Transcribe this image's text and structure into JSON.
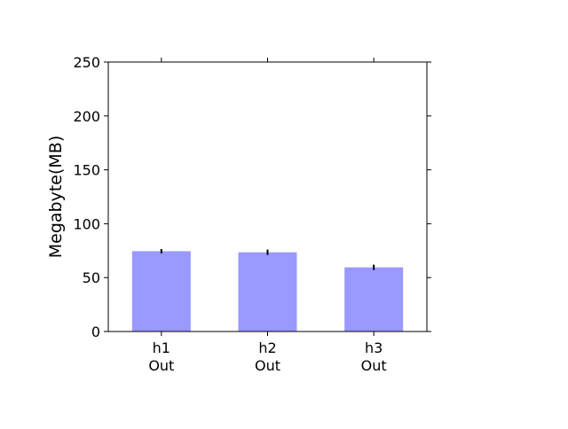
{
  "chart_data": {
    "type": "bar",
    "title": "",
    "xlabel": "",
    "ylabel": "Megabyte(MB)",
    "categories": [
      [
        "h1",
        "Out"
      ],
      [
        "h2",
        "Out"
      ],
      [
        "h3",
        "Out"
      ]
    ],
    "values": [
      74.5,
      73.5,
      59.5
    ],
    "errors": [
      2,
      2.5,
      2.5
    ],
    "ylim": [
      0,
      250
    ],
    "yticks": [
      0,
      50,
      100,
      150,
      200,
      250
    ],
    "grid": false,
    "legend": "none",
    "colors": {
      "bar": "#9999ff",
      "error": "#000000",
      "axis": "#000000"
    }
  }
}
